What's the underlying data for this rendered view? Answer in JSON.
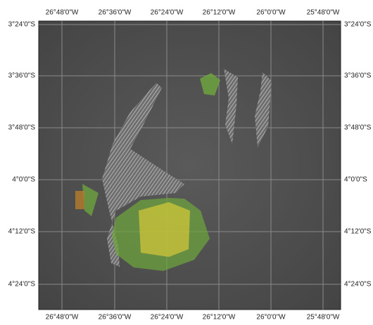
{
  "map": {
    "top_labels": [
      "26°48'0\"W",
      "26°36'0\"W",
      "26°24'0\"W",
      "26°12'0\"W",
      "26°0'0\"W",
      "25°48'0\"W"
    ],
    "bottom_labels": [
      "26°48'0\"W",
      "26°36'0\"W",
      "26°24'0\"W",
      "26°12'0\"W",
      "26°0'0\"W",
      "25°48'0\"W"
    ],
    "left_labels": [
      "3°24'0\"S",
      "3°36'0\"S",
      "3°48'0\"S",
      "4°0'0\"S",
      "4°12'0\"S",
      "4°24'0\"S"
    ],
    "right_labels": [
      "3°24'0\"S",
      "3°36'0\"S",
      "3°48'0\"S",
      "4°0'0\"S",
      "4°12'0\"S",
      "4°24'0\"S"
    ]
  }
}
